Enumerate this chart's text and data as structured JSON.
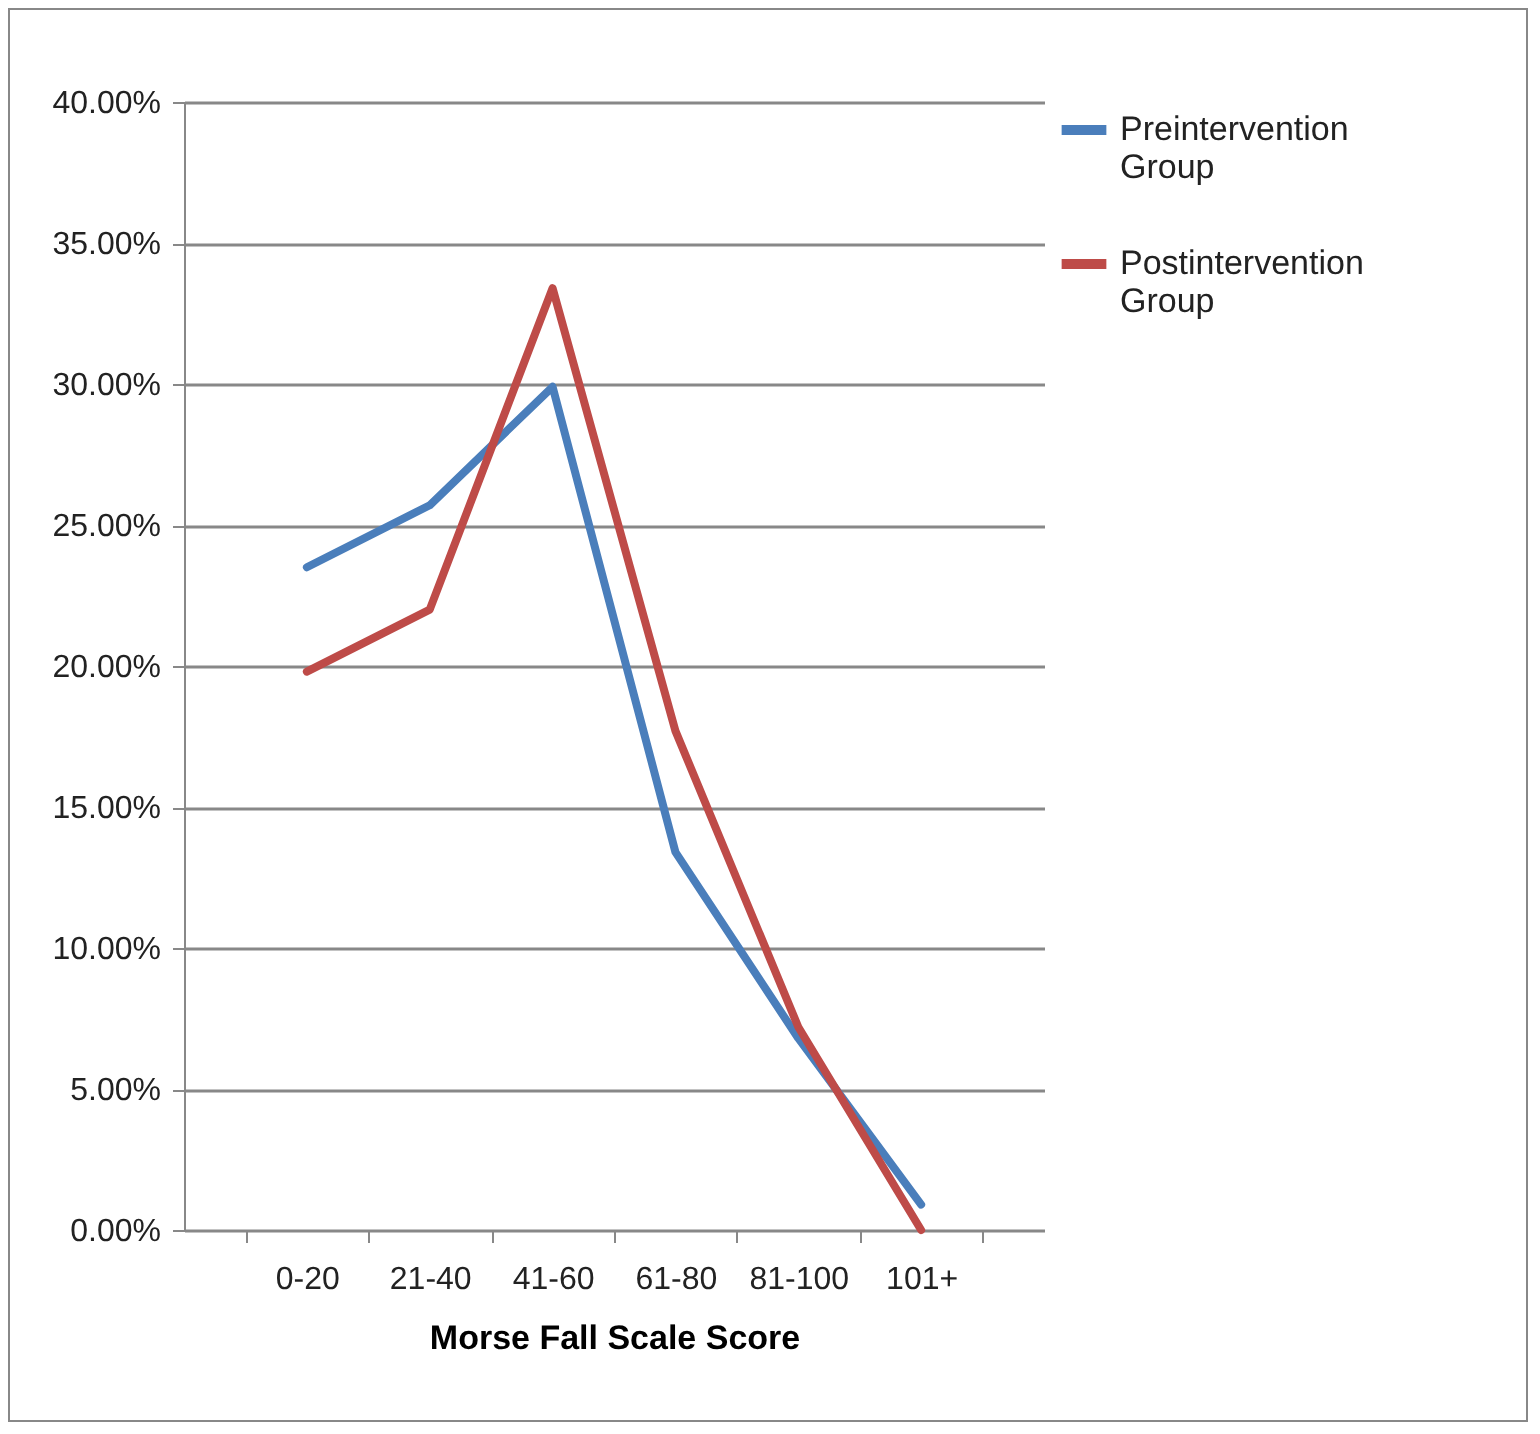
{
  "chart_data": {
    "type": "line",
    "xlabel": "Morse Fall Scale Score",
    "categories": [
      "0-20",
      "21-40",
      "41-60",
      "61-80",
      "81-100",
      "101+"
    ],
    "series": [
      {
        "name": "Preintervention Group",
        "color": "#4a7ebb",
        "values": [
          23.5,
          25.7,
          29.9,
          13.4,
          6.8,
          0.9
        ]
      },
      {
        "name": "Postintervention Group",
        "color": "#be4b48",
        "values": [
          19.8,
          22.0,
          33.4,
          17.7,
          7.2,
          0
        ]
      }
    ],
    "ylim": [
      0,
      40
    ],
    "yticks": [
      {
        "value": 0,
        "label": "0.00%"
      },
      {
        "value": 5,
        "label": "5.00%"
      },
      {
        "value": 10,
        "label": "10.00%"
      },
      {
        "value": 15,
        "label": "15.00%"
      },
      {
        "value": 20,
        "label": "20.00%"
      },
      {
        "value": 25,
        "label": "25.00%"
      },
      {
        "value": 30,
        "label": "30.00%"
      },
      {
        "value": 35,
        "label": "35.00%"
      },
      {
        "value": 40,
        "label": "40.00%"
      }
    ],
    "grid": "y",
    "legend": "right",
    "marker": "none",
    "line_style": "solid"
  }
}
